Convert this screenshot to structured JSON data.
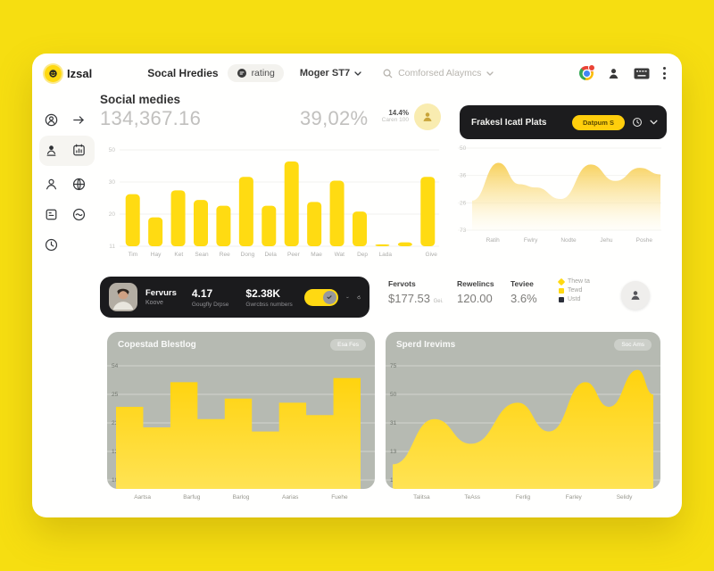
{
  "colors": {
    "background": "#F6DE11",
    "accent": "#FFDB12",
    "dark": "#1b1b1d",
    "panel_gray": "#b6bab2"
  },
  "app": {
    "logo": "Izsal"
  },
  "header": {
    "nav_primary": "Socal Hredies",
    "rating_pill": "rating",
    "manager_dropdown": "Moger ST7",
    "search_text": "Comforsed Alaymcs",
    "icons": [
      "browser-logo-icon",
      "user-icon",
      "keyboard-icon",
      "overflow-menu-icon"
    ]
  },
  "sidebar": {
    "icons": [
      "user-circle",
      "arrow-right",
      "user-badge",
      "calendar-chart",
      "user-outline",
      "globe",
      "card",
      "circle-wave",
      "clock"
    ]
  },
  "overview": {
    "title": "Social medies",
    "primary_value": "134,367.16",
    "secondary_value": "39,02%",
    "delta_value": "14.4%",
    "delta_caption": "Caren 100"
  },
  "right_panel": {
    "title": "Frakesl Icatl Plats",
    "button_label": "Datpum S"
  },
  "profile_card": {
    "name": "Fervurs",
    "subtitle": "Koove",
    "metric1_value": "4.17",
    "metric1_label": "Gougfly Drpse",
    "metric2_value": "$2.38K",
    "metric2_label": "Gwrcbss numbers"
  },
  "stats": [
    {
      "label": "Fervots",
      "value": "$177.53",
      "suffix": "Gei."
    },
    {
      "label": "Rewelincs",
      "value": "120.00",
      "suffix": ""
    },
    {
      "label": "Teviee",
      "value": "3.6%",
      "suffix": ""
    }
  ],
  "legend": [
    {
      "label": "Thew ta",
      "color": "#FFD912",
      "shape": "diamond"
    },
    {
      "label": "Tewd",
      "color": "#FFD912",
      "shape": "square"
    },
    {
      "label": "Ustd",
      "color": "#2b2f3a",
      "shape": "square"
    }
  ],
  "chart_data": [
    {
      "id": "main-bar",
      "type": "bar",
      "title": "Social medies",
      "categories": [
        "Tim",
        "Hay",
        "Ket",
        "Sean",
        "Ree",
        "Dong",
        "Dela",
        "Peer",
        "Mae",
        "Wat",
        "Dep",
        "Lada",
        "",
        "Give"
      ],
      "values": [
        27,
        15,
        29,
        24,
        21,
        36,
        21,
        44,
        23,
        34,
        18,
        1,
        2,
        36
      ],
      "ylim": [
        0,
        50
      ],
      "yticks": [
        "50",
        "30",
        "20",
        "11"
      ],
      "grid": true,
      "bar_color": "#FFDB12"
    },
    {
      "id": "right-area",
      "type": "area",
      "title": "Frakesl Icatl Plats",
      "x": [
        0,
        0.14,
        0.25,
        0.34,
        0.47,
        0.63,
        0.76,
        0.89,
        1
      ],
      "values": [
        18,
        41,
        28,
        26,
        19,
        40,
        30,
        38,
        34
      ],
      "ylim": [
        0,
        50
      ],
      "yticks": [
        "50",
        "36",
        "26",
        "73"
      ],
      "categories": [
        "Ratih",
        "Fwlry",
        "Nodte",
        "Jehu",
        "Poshe"
      ],
      "grid": true
    },
    {
      "id": "bl-step",
      "type": "area",
      "subtype": "step",
      "title": "Copestad Blestlog",
      "button": "Esa Fes",
      "values": [
        20,
        15,
        26,
        17,
        22,
        14,
        21,
        18,
        27
      ],
      "ylim": [
        0,
        30
      ],
      "yticks": [
        "54",
        "25",
        "23",
        "12",
        "10"
      ],
      "categories": [
        "Aartsa",
        "Barfug",
        "Barlog",
        "Aarias",
        "Fuehe"
      ],
      "grid": true
    },
    {
      "id": "br-wave",
      "type": "area",
      "title": "Sperd Irevims",
      "button": "Soc Ams",
      "x": [
        0,
        0.16,
        0.3,
        0.48,
        0.6,
        0.74,
        0.83,
        0.94,
        1
      ],
      "values": [
        6,
        17,
        11,
        21,
        14,
        26,
        20,
        29,
        23
      ],
      "ylim": [
        0,
        30
      ],
      "yticks": [
        "75",
        "50",
        "31",
        "13",
        "10"
      ],
      "categories": [
        "Talitsa",
        "TeAss",
        "Ferlig",
        "Farley",
        "Selidy"
      ],
      "grid": true
    }
  ]
}
